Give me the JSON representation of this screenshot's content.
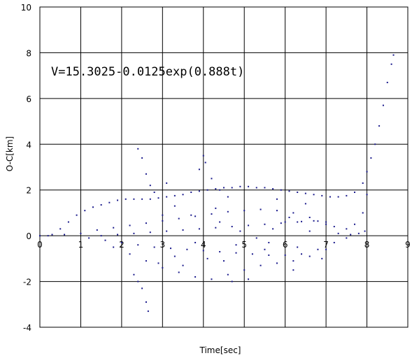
{
  "chart_data": {
    "type": "scatter",
    "title": "",
    "xlabel": "Time[sec]",
    "ylabel": "O-C[km]",
    "xlim": [
      0,
      9
    ],
    "ylim": [
      -4,
      10
    ],
    "x_ticks": [
      0,
      1,
      2,
      3,
      4,
      5,
      6,
      7,
      8,
      9
    ],
    "y_ticks": [
      -4,
      -2,
      0,
      2,
      4,
      6,
      8,
      10
    ],
    "grid": true,
    "legend": "none",
    "annotation": "V=15.3025-0.0125exp(0.888t)",
    "marker_color": "#1a1a8c",
    "series": [
      {
        "points": [
          [
            0.0,
            0.0
          ],
          [
            0.3,
            0.05
          ],
          [
            0.5,
            0.3
          ],
          [
            0.7,
            0.6
          ],
          [
            0.9,
            0.9
          ],
          [
            1.1,
            1.1
          ],
          [
            1.3,
            1.25
          ],
          [
            1.5,
            1.35
          ],
          [
            1.7,
            1.45
          ],
          [
            1.9,
            1.55
          ],
          [
            2.1,
            1.6
          ],
          [
            2.3,
            1.6
          ],
          [
            2.5,
            1.6
          ],
          [
            2.7,
            1.6
          ],
          [
            2.9,
            1.65
          ],
          [
            3.1,
            1.7
          ],
          [
            3.3,
            1.75
          ],
          [
            3.5,
            1.8
          ],
          [
            3.7,
            1.9
          ],
          [
            3.9,
            1.95
          ],
          [
            4.1,
            2.0
          ],
          [
            4.3,
            2.05
          ],
          [
            4.5,
            2.1
          ],
          [
            4.7,
            2.1
          ],
          [
            4.9,
            2.15
          ],
          [
            5.1,
            2.15
          ],
          [
            5.3,
            2.1
          ],
          [
            5.5,
            2.1
          ],
          [
            5.7,
            2.05
          ],
          [
            5.9,
            2.0
          ],
          [
            6.1,
            1.95
          ],
          [
            6.3,
            1.9
          ],
          [
            6.5,
            1.85
          ],
          [
            6.7,
            1.8
          ],
          [
            6.9,
            1.75
          ],
          [
            7.1,
            1.7
          ],
          [
            7.3,
            1.7
          ],
          [
            7.5,
            1.75
          ],
          [
            7.7,
            1.9
          ],
          [
            7.9,
            2.3
          ],
          [
            8.0,
            2.8
          ],
          [
            8.1,
            3.4
          ],
          [
            8.2,
            4.0
          ],
          [
            8.3,
            4.8
          ],
          [
            8.4,
            5.7
          ],
          [
            8.5,
            6.7
          ],
          [
            8.6,
            7.5
          ],
          [
            8.65,
            7.9
          ],
          [
            0.2,
            0.0
          ],
          [
            0.6,
            0.05
          ],
          [
            1.0,
            0.1
          ],
          [
            1.4,
            0.25
          ],
          [
            1.8,
            0.35
          ],
          [
            2.2,
            0.45
          ],
          [
            2.6,
            0.55
          ],
          [
            3.0,
            0.65
          ],
          [
            3.4,
            0.75
          ],
          [
            3.8,
            0.85
          ],
          [
            4.2,
            0.95
          ],
          [
            4.6,
            1.05
          ],
          [
            5.0,
            1.1
          ],
          [
            5.4,
            1.15
          ],
          [
            5.8,
            1.1
          ],
          [
            6.2,
            1.0
          ],
          [
            6.6,
            0.8
          ],
          [
            7.0,
            0.5
          ],
          [
            7.3,
            0.1
          ],
          [
            7.5,
            -0.1
          ],
          [
            1.5,
            0.0
          ],
          [
            1.9,
            0.05
          ],
          [
            2.3,
            0.1
          ],
          [
            2.7,
            0.15
          ],
          [
            3.1,
            0.2
          ],
          [
            3.5,
            0.25
          ],
          [
            3.9,
            0.3
          ],
          [
            4.3,
            0.35
          ],
          [
            4.7,
            0.4
          ],
          [
            5.1,
            0.45
          ],
          [
            5.5,
            0.5
          ],
          [
            5.9,
            0.55
          ],
          [
            6.3,
            0.6
          ],
          [
            6.7,
            0.65
          ],
          [
            7.0,
            0.6
          ],
          [
            1.2,
            -0.1
          ],
          [
            1.6,
            -0.2
          ],
          [
            2.0,
            -0.3
          ],
          [
            2.4,
            -0.4
          ],
          [
            2.8,
            -0.5
          ],
          [
            3.2,
            -0.55
          ],
          [
            3.6,
            -0.6
          ],
          [
            4.0,
            -0.65
          ],
          [
            4.4,
            -0.7
          ],
          [
            4.8,
            -0.75
          ],
          [
            5.2,
            -0.8
          ],
          [
            5.6,
            -0.85
          ],
          [
            6.0,
            -0.85
          ],
          [
            6.4,
            -0.8
          ],
          [
            6.8,
            -0.6
          ],
          [
            7.2,
            -0.3
          ],
          [
            1.8,
            -0.5
          ],
          [
            2.2,
            -0.8
          ],
          [
            2.6,
            -1.1
          ],
          [
            3.0,
            -1.4
          ],
          [
            3.4,
            -1.6
          ],
          [
            3.8,
            -1.8
          ],
          [
            4.2,
            -1.9
          ],
          [
            4.6,
            -1.7
          ],
          [
            5.0,
            -1.5
          ],
          [
            5.4,
            -1.3
          ],
          [
            5.8,
            -1.2
          ],
          [
            6.2,
            -1.1
          ],
          [
            6.6,
            -0.9
          ],
          [
            7.0,
            -0.6
          ],
          [
            2.4,
            -2.0
          ],
          [
            2.5,
            -2.3
          ],
          [
            2.6,
            -2.9
          ],
          [
            2.65,
            -3.3
          ],
          [
            2.3,
            -1.7
          ],
          [
            2.9,
            -1.2
          ],
          [
            3.3,
            -0.9
          ],
          [
            4.1,
            -1.0
          ],
          [
            4.8,
            -0.4
          ],
          [
            5.6,
            -0.3
          ],
          [
            6.3,
            -0.5
          ],
          [
            6.9,
            -1.0
          ],
          [
            2.4,
            3.8
          ],
          [
            2.5,
            3.4
          ],
          [
            2.6,
            2.7
          ],
          [
            2.7,
            2.2
          ],
          [
            2.8,
            1.9
          ],
          [
            3.1,
            2.3
          ],
          [
            3.9,
            2.9
          ],
          [
            4.0,
            3.5
          ],
          [
            4.05,
            3.2
          ],
          [
            4.2,
            2.5
          ],
          [
            4.4,
            2.0
          ],
          [
            4.6,
            1.7
          ],
          [
            3.3,
            1.3
          ],
          [
            3.7,
            0.9
          ],
          [
            4.4,
            0.6
          ],
          [
            4.9,
            0.2
          ],
          [
            5.3,
            -0.1
          ],
          [
            5.7,
            0.3
          ],
          [
            6.1,
            0.8
          ],
          [
            6.5,
            1.4
          ],
          [
            3.5,
            -1.3
          ],
          [
            4.5,
            -1.1
          ],
          [
            5.5,
            -0.6
          ],
          [
            6.2,
            -1.5
          ],
          [
            4.3,
            1.2
          ],
          [
            5.8,
            1.6
          ],
          [
            3.0,
            0.9
          ],
          [
            3.8,
            -0.3
          ],
          [
            4.7,
            -2.0
          ],
          [
            5.1,
            -1.9
          ],
          [
            6.6,
            0.2
          ],
          [
            6.0,
            0.6
          ],
          [
            6.4,
            0.62
          ],
          [
            6.8,
            0.64
          ],
          [
            7.2,
            0.4
          ],
          [
            7.5,
            0.3
          ],
          [
            7.7,
            0.5
          ],
          [
            7.9,
            1.0
          ],
          [
            8.0,
            1.8
          ],
          [
            7.6,
            0.05
          ],
          [
            7.8,
            0.1
          ],
          [
            7.95,
            0.2
          ]
        ]
      }
    ]
  }
}
